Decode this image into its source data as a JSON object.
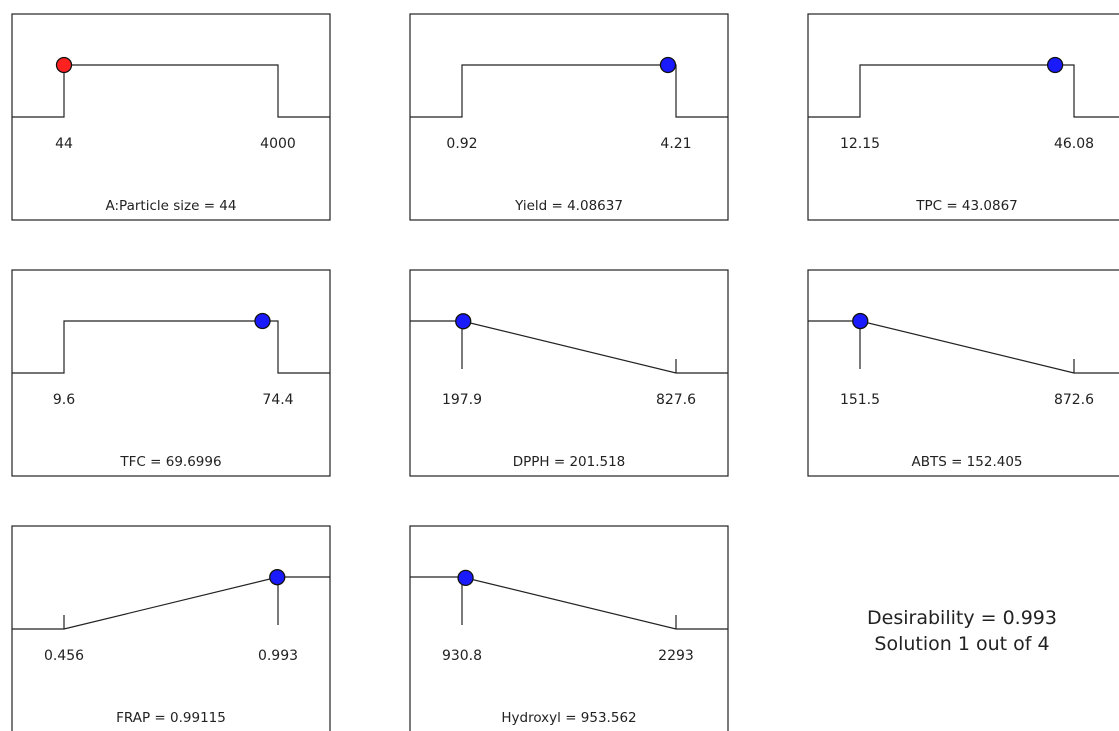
{
  "chart_data": [
    {
      "type": "line",
      "shape": "target",
      "factor": true,
      "title": "A:Particle size = 44",
      "low": 44,
      "high": 4000,
      "low_label": "44",
      "high_label": "4000",
      "value": 44,
      "point_color": "#ff2020"
    },
    {
      "type": "line",
      "shape": "target",
      "title": "Yield = 4.08637",
      "low": 0.92,
      "high": 4.21,
      "low_label": "0.92",
      "high_label": "4.21",
      "value": 4.08637,
      "point_color": "#1a1aff"
    },
    {
      "type": "line",
      "shape": "target",
      "title": "TPC = 43.0867",
      "low": 12.15,
      "high": 46.08,
      "low_label": "12.15",
      "high_label": "46.08",
      "value": 43.0867,
      "point_color": "#1a1aff"
    },
    {
      "type": "line",
      "shape": "target",
      "title": "TFC = 69.6996",
      "low": 9.6,
      "high": 74.4,
      "low_label": "9.6",
      "high_label": "74.4",
      "value": 69.6996,
      "point_color": "#1a1aff"
    },
    {
      "type": "line",
      "shape": "minimize",
      "title": "DPPH = 201.518",
      "low": 197.9,
      "high": 827.6,
      "low_label": "197.9",
      "high_label": "827.6",
      "value": 201.518,
      "point_color": "#1a1aff"
    },
    {
      "type": "line",
      "shape": "minimize",
      "title": "ABTS = 152.405",
      "low": 151.5,
      "high": 872.6,
      "low_label": "151.5",
      "high_label": "872.6",
      "value": 152.405,
      "point_color": "#1a1aff"
    },
    {
      "type": "line",
      "shape": "maximize",
      "title": "FRAP = 0.99115",
      "low": 0.456,
      "high": 0.993,
      "low_label": "0.456",
      "high_label": "0.993",
      "value": 0.99115,
      "point_color": "#1a1aff"
    },
    {
      "type": "line",
      "shape": "minimize",
      "title": "Hydroxyl = 953.562",
      "low": 930.8,
      "high": 2293,
      "low_label": "930.8",
      "high_label": "2293",
      "value": 953.562,
      "point_color": "#1a1aff"
    }
  ],
  "summary": {
    "desirability": "Desirability = 0.993",
    "solution": "Solution 1 out of 4"
  }
}
